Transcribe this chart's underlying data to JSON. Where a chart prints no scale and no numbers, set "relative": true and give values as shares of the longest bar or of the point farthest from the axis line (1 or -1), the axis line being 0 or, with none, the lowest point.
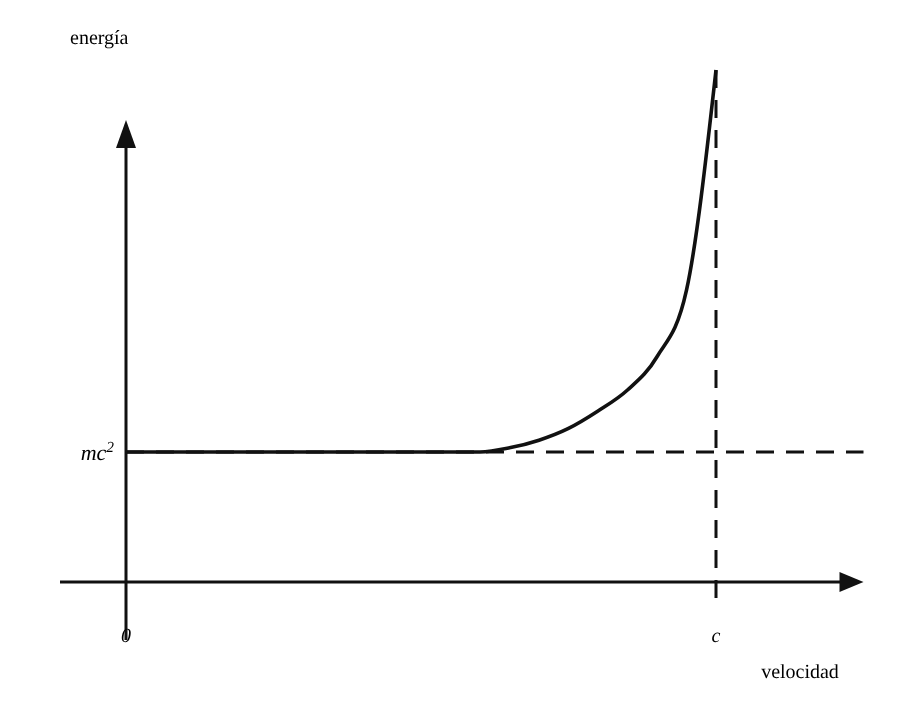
{
  "chart_data": {
    "type": "line",
    "xlabel": "velocidad",
    "ylabel": "energía",
    "relative": true,
    "categories": [
      "0",
      null,
      null,
      null,
      null,
      null,
      null,
      null,
      null,
      null,
      null,
      null,
      null,
      null,
      null,
      null,
      null,
      null,
      null,
      null,
      "c"
    ],
    "series": [
      {
        "color": "#111111",
        "values": [
          0.254,
          0.254,
          0.254,
          0.254,
          0.254,
          0.254,
          0.254,
          0.254,
          0.254,
          0.254,
          0.254,
          0.254,
          0.254,
          0.262,
          0.277,
          0.3,
          0.334,
          0.375,
          0.44,
          0.57,
          1.0
        ]
      }
    ],
    "ref_lines": [
      {
        "axis": "y",
        "value": 0.254,
        "label": "mc$^{2}$",
        "line_style": "dashed",
        "color": "#111111"
      },
      {
        "axis": "x",
        "value": "c",
        "line_style": "dashed",
        "color": "#111111"
      }
    ],
    "marker": "none",
    "line_style": "solid",
    "grid": false
  }
}
